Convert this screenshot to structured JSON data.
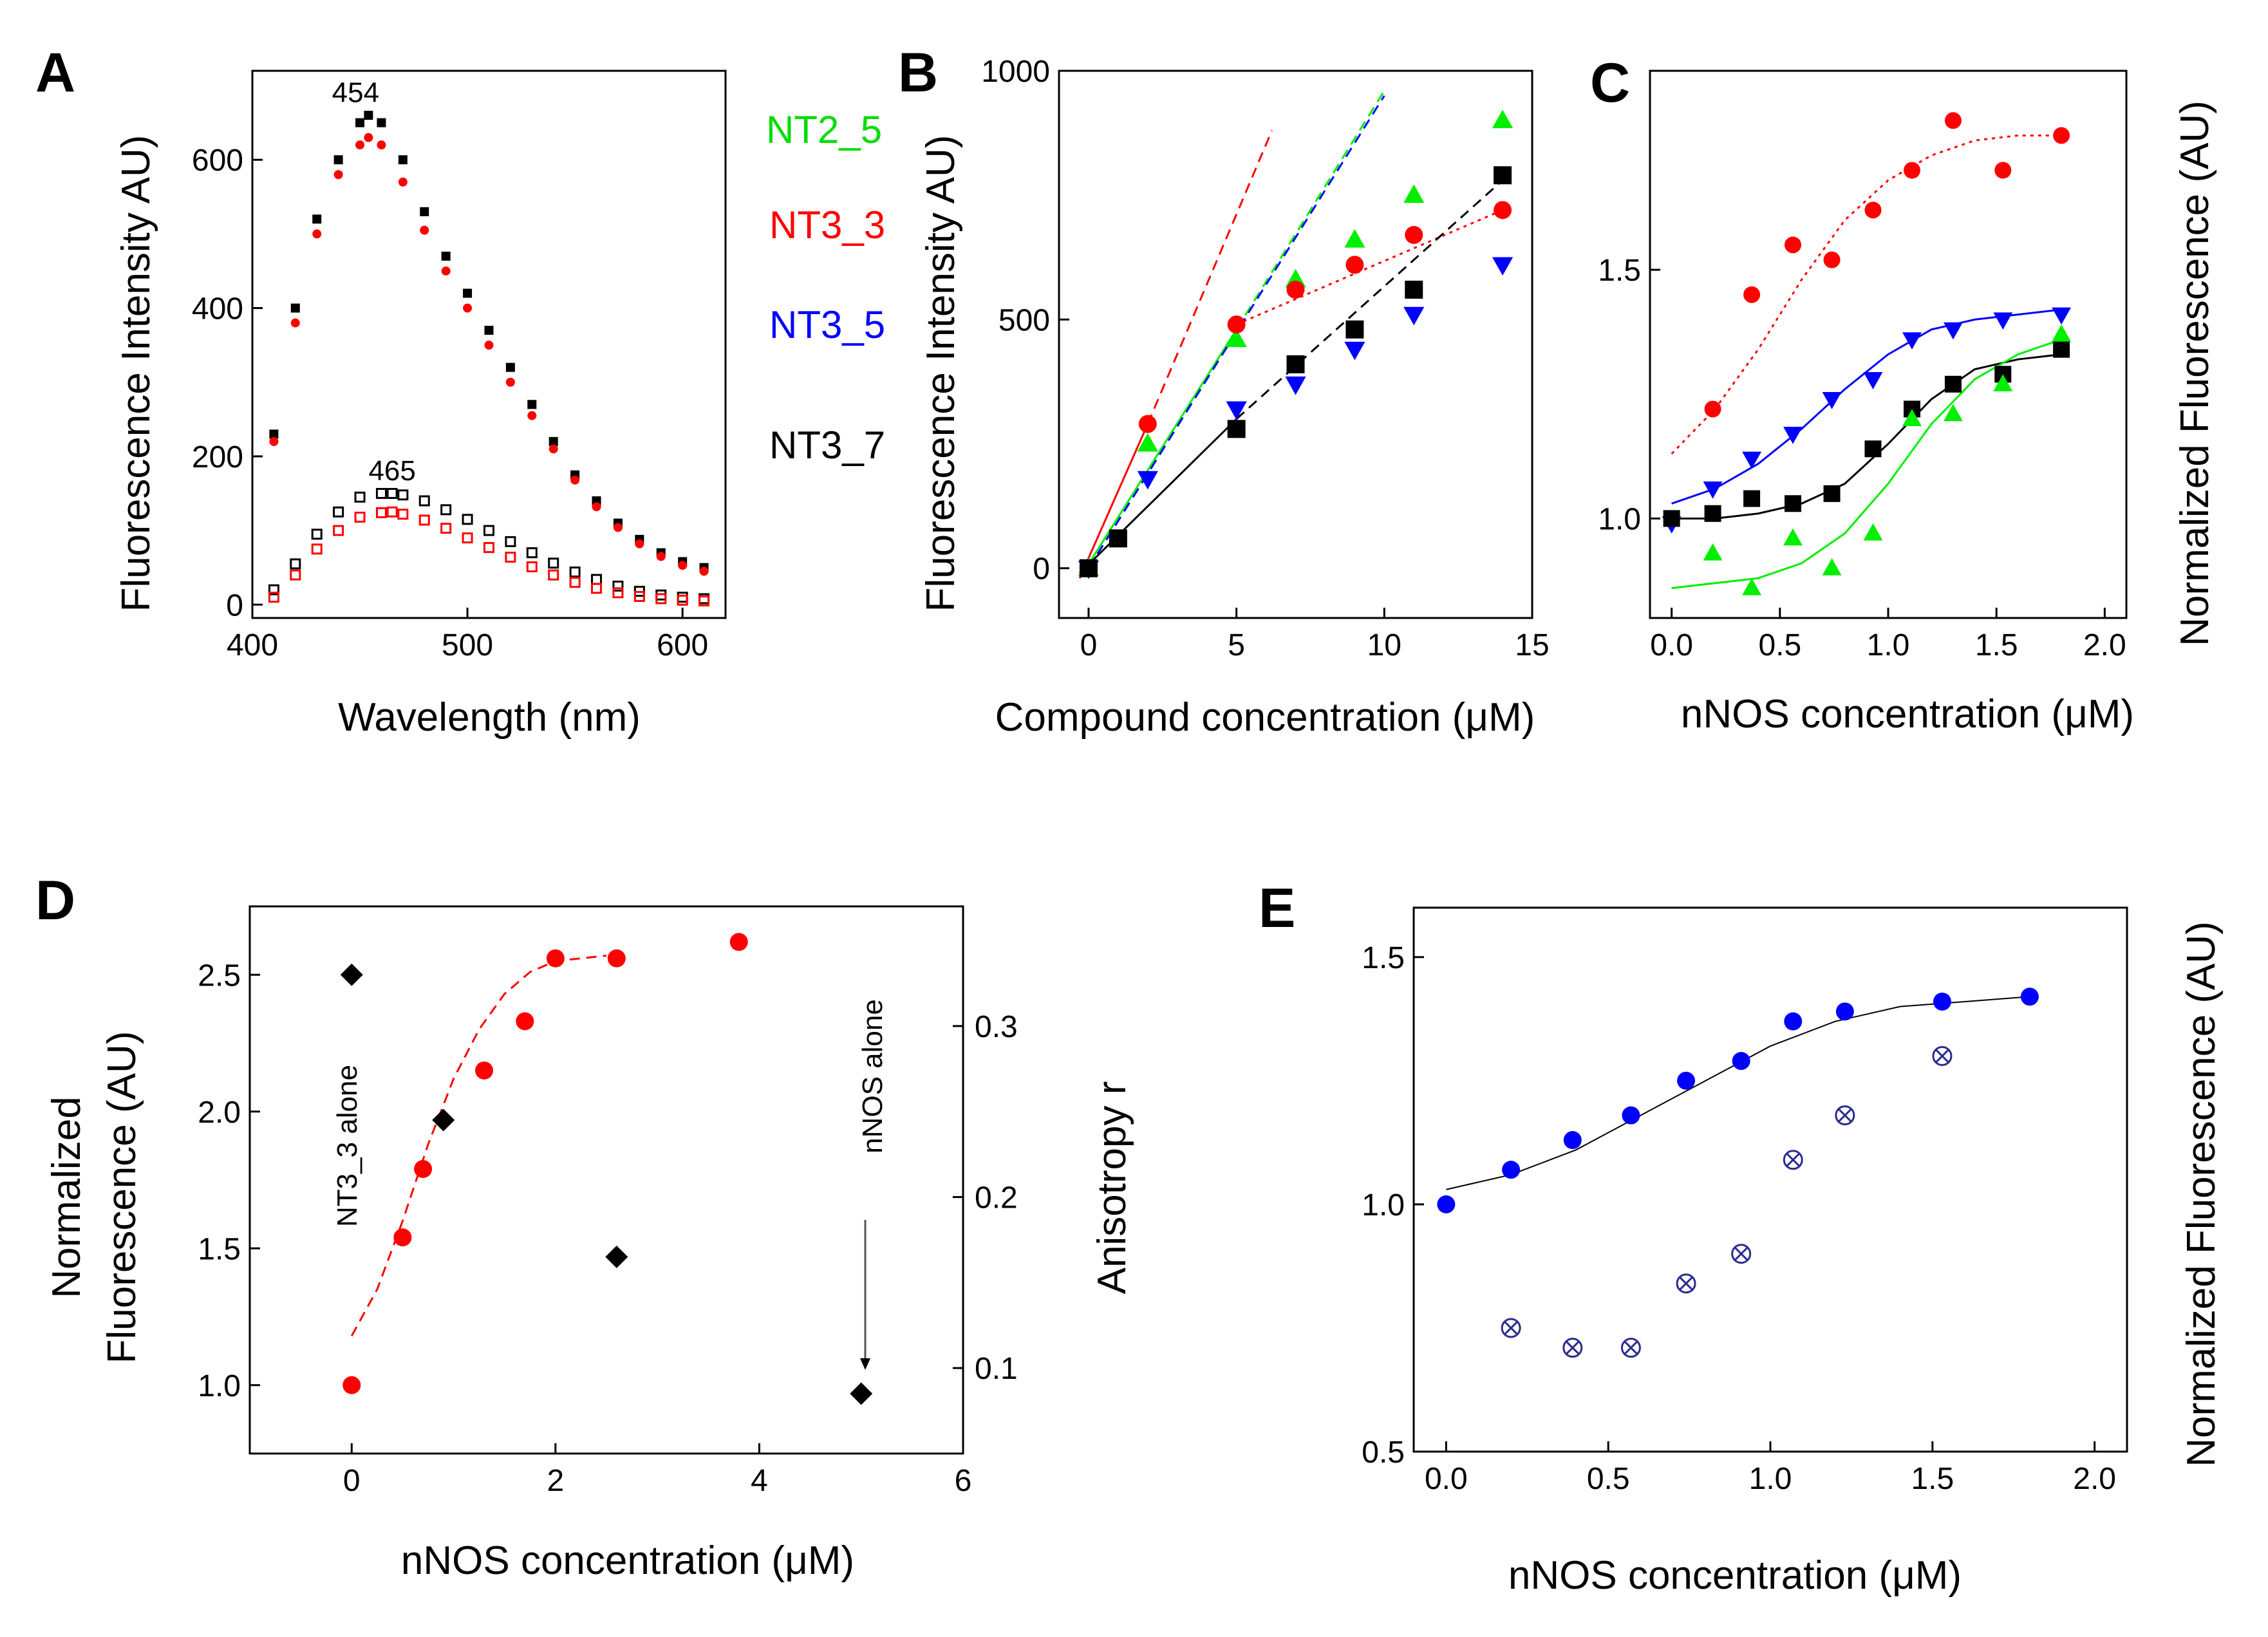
{
  "colors": {
    "black": "#000000",
    "red": "#ff0000",
    "green": "#00ee00",
    "blue": "#0000ff",
    "navy": "#2b2b8f"
  },
  "legend": {
    "entries": [
      {
        "label": "NT2_5",
        "color": "#00dd00"
      },
      {
        "label": "NT3_3",
        "color": "#ff0000"
      },
      {
        "label": "NT3_5",
        "color": "#0000ff"
      },
      {
        "label": "NT3_7",
        "color": "#000000"
      }
    ]
  },
  "chart_data": [
    {
      "id": "A",
      "letter": "A",
      "type": "scatter",
      "xlabel": "Wavelength (nm)",
      "ylabel": "Fluorescence Intensity AU)",
      "xlim": [
        400,
        620
      ],
      "ylim": [
        -18,
        720
      ],
      "xticks": [
        400,
        500,
        600
      ],
      "xtick_labels": [
        "400",
        "500",
        "600"
      ],
      "yticks": [
        0,
        200,
        400,
        600
      ],
      "ytick_labels": [
        "0",
        "200",
        "400",
        "600"
      ],
      "annotations": [
        {
          "text": "454",
          "x": 448,
          "y": 678
        },
        {
          "text": "465",
          "x": 465,
          "y": 168
        }
      ],
      "series": [
        {
          "name": "high black",
          "color": "#000000",
          "marker": "square",
          "x": [
            410,
            420,
            430,
            440,
            450,
            454,
            460,
            470,
            480,
            490,
            500,
            510,
            520,
            530,
            540,
            550,
            560,
            570,
            580,
            590,
            600,
            610
          ],
          "y": [
            230,
            400,
            520,
            600,
            650,
            660,
            650,
            600,
            530,
            470,
            420,
            370,
            320,
            270,
            220,
            175,
            140,
            110,
            88,
            70,
            58,
            50
          ]
        },
        {
          "name": "high red",
          "color": "#ff0000",
          "marker": "circle",
          "x": [
            410,
            420,
            430,
            440,
            450,
            454,
            460,
            470,
            480,
            490,
            500,
            510,
            520,
            530,
            540,
            550,
            560,
            570,
            580,
            590,
            600,
            610
          ],
          "y": [
            220,
            380,
            500,
            580,
            620,
            630,
            620,
            570,
            505,
            450,
            400,
            350,
            300,
            255,
            210,
            168,
            132,
            104,
            82,
            65,
            53,
            45
          ]
        },
        {
          "name": "low black",
          "color": "#000000",
          "marker": "open-square",
          "x": [
            410,
            420,
            430,
            440,
            450,
            460,
            465,
            470,
            480,
            490,
            500,
            510,
            520,
            530,
            540,
            550,
            560,
            570,
            580,
            590,
            600,
            610
          ],
          "y": [
            20,
            55,
            95,
            125,
            145,
            150,
            150,
            148,
            140,
            128,
            115,
            100,
            85,
            70,
            56,
            44,
            34,
            25,
            18,
            13,
            10,
            8
          ]
        },
        {
          "name": "low red",
          "color": "#ff0000",
          "marker": "open-square",
          "x": [
            410,
            420,
            430,
            440,
            450,
            460,
            465,
            470,
            480,
            490,
            500,
            510,
            520,
            530,
            540,
            550,
            560,
            570,
            580,
            590,
            600,
            610
          ],
          "y": [
            10,
            40,
            75,
            100,
            118,
            124,
            125,
            122,
            114,
            103,
            90,
            77,
            64,
            51,
            40,
            30,
            22,
            16,
            11,
            8,
            6,
            5
          ]
        }
      ]
    },
    {
      "id": "B",
      "letter": "B",
      "type": "scatter",
      "xlabel": "Compound concentration (μM)",
      "ylabel": "Fluorescence Intensity AU)",
      "xlim": [
        -1,
        15
      ],
      "ylim": [
        -100,
        1000
      ],
      "xticks": [
        0,
        5,
        10,
        15
      ],
      "xtick_labels": [
        "0",
        "5",
        "10",
        "15"
      ],
      "yticks": [
        0,
        500,
        1000
      ],
      "ytick_labels": [
        "0",
        "500",
        "1000"
      ],
      "series": [
        {
          "name": "NT2_5",
          "color": "#00ee00",
          "marker": "triangle-up",
          "x": [
            0,
            2,
            5,
            7,
            9,
            11,
            14
          ],
          "y": [
            0,
            250,
            460,
            580,
            660,
            750,
            900
          ]
        },
        {
          "name": "NT3_3",
          "color": "#ff0000",
          "marker": "circle",
          "x": [
            0,
            2,
            5,
            7,
            9,
            11,
            14
          ],
          "y": [
            0,
            290,
            490,
            560,
            610,
            670,
            720
          ]
        },
        {
          "name": "NT3_5",
          "color": "#0000ff",
          "marker": "triangle-down",
          "x": [
            0,
            2,
            5,
            7,
            9,
            11,
            14
          ],
          "y": [
            0,
            180,
            320,
            370,
            440,
            510,
            610
          ]
        },
        {
          "name": "NT3_7",
          "color": "#000000",
          "marker": "square",
          "x": [
            0,
            1,
            5,
            7,
            9,
            11,
            14
          ],
          "y": [
            0,
            60,
            280,
            410,
            480,
            560,
            790
          ]
        }
      ],
      "lines": [
        {
          "color": "#00ee00",
          "dash": "solid",
          "x": [
            -0.3,
            5
          ],
          "y": [
            -20,
            480
          ]
        },
        {
          "color": "#00ee00",
          "dash": "dashed",
          "x": [
            5,
            10
          ],
          "y": [
            480,
            960
          ]
        },
        {
          "color": "#ff0000",
          "dash": "solid",
          "x": [
            -0.3,
            2
          ],
          "y": [
            -20,
            290
          ]
        },
        {
          "color": "#ff0000",
          "dash": "dashed",
          "x": [
            2,
            6.2
          ],
          "y": [
            290,
            880
          ]
        },
        {
          "color": "#ff0000",
          "dash": "dotted",
          "x": [
            5,
            14
          ],
          "y": [
            490,
            720
          ]
        },
        {
          "color": "#0000ff",
          "dash": "dashed",
          "x": [
            0,
            10
          ],
          "y": [
            0,
            950
          ]
        },
        {
          "color": "#000000",
          "dash": "solid",
          "x": [
            -0.3,
            5
          ],
          "y": [
            -10,
            300
          ]
        },
        {
          "color": "#000000",
          "dash": "dashed",
          "x": [
            5,
            14
          ],
          "y": [
            300,
            780
          ]
        }
      ]
    },
    {
      "id": "C",
      "letter": "C",
      "type": "scatter",
      "xlabel": "nNOS concentration (μM)",
      "ylabel": "Normalized Fluorescence (AU)",
      "ylabel_side": "right",
      "xlim": [
        -0.1,
        2.1
      ],
      "ylim": [
        0.8,
        1.9
      ],
      "xticks": [
        0.0,
        0.5,
        1.0,
        1.5,
        2.0
      ],
      "xtick_labels": [
        "0.0",
        "0.5",
        "1.0",
        "1.5",
        "2.0"
      ],
      "yticks": [
        1.0,
        1.5
      ],
      "ytick_labels": [
        "1.0",
        "1.5"
      ],
      "series": [
        {
          "name": "NT3_3",
          "color": "#ff0000",
          "marker": "circle",
          "x": [
            0.19,
            0.37,
            0.56,
            0.74,
            0.93,
            1.11,
            1.3,
            1.53,
            1.8
          ],
          "y": [
            1.22,
            1.45,
            1.55,
            1.52,
            1.62,
            1.7,
            1.8,
            1.7,
            1.77
          ]
        },
        {
          "name": "NT3_5",
          "color": "#0000ff",
          "marker": "triangle-down",
          "x": [
            0.0,
            0.19,
            0.37,
            0.56,
            0.74,
            0.93,
            1.11,
            1.3,
            1.53,
            1.8
          ],
          "y": [
            0.99,
            1.06,
            1.12,
            1.17,
            1.24,
            1.28,
            1.36,
            1.38,
            1.4,
            1.41
          ]
        },
        {
          "name": "NT3_7",
          "color": "#000000",
          "marker": "square",
          "x": [
            0.0,
            0.19,
            0.37,
            0.56,
            0.74,
            0.93,
            1.11,
            1.3,
            1.53,
            1.8
          ],
          "y": [
            1.0,
            1.01,
            1.04,
            1.03,
            1.05,
            1.14,
            1.22,
            1.27,
            1.29,
            1.34
          ]
        },
        {
          "name": "NT2_5",
          "color": "#00ee00",
          "marker": "triangle-up",
          "x": [
            0.19,
            0.37,
            0.56,
            0.74,
            0.93,
            1.11,
            1.3,
            1.53,
            1.8
          ],
          "y": [
            0.93,
            0.86,
            0.96,
            0.9,
            0.97,
            1.2,
            1.21,
            1.27,
            1.37
          ]
        }
      ],
      "curves": [
        {
          "color": "#ff0000",
          "dash": "dotted",
          "x": [
            0.0,
            0.2,
            0.4,
            0.6,
            0.8,
            1.0,
            1.2,
            1.4,
            1.6,
            1.8
          ],
          "y": [
            1.13,
            1.22,
            1.34,
            1.48,
            1.6,
            1.68,
            1.73,
            1.76,
            1.77,
            1.77
          ]
        },
        {
          "color": "#0000ff",
          "dash": "solid",
          "x": [
            0.0,
            0.2,
            0.4,
            0.6,
            0.8,
            1.0,
            1.2,
            1.4,
            1.6,
            1.8
          ],
          "y": [
            1.03,
            1.06,
            1.11,
            1.18,
            1.26,
            1.33,
            1.38,
            1.4,
            1.41,
            1.42
          ]
        },
        {
          "color": "#000000",
          "dash": "solid",
          "x": [
            0.0,
            0.2,
            0.4,
            0.6,
            0.8,
            1.0,
            1.2,
            1.4,
            1.6,
            1.8
          ],
          "y": [
            1.0,
            1.0,
            1.01,
            1.03,
            1.07,
            1.15,
            1.24,
            1.3,
            1.32,
            1.33
          ]
        },
        {
          "color": "#00ee00",
          "dash": "solid",
          "x": [
            0.0,
            0.2,
            0.4,
            0.6,
            0.8,
            1.0,
            1.2,
            1.4,
            1.6,
            1.8
          ],
          "y": [
            0.86,
            0.87,
            0.88,
            0.91,
            0.97,
            1.07,
            1.19,
            1.28,
            1.33,
            1.36
          ]
        }
      ]
    },
    {
      "id": "D",
      "letter": "D",
      "type": "scatter",
      "xlabel": "nNOS concentration (μM)",
      "ylabel_line1": "Normalized",
      "ylabel_line2": "Fluorescence (AU)",
      "y2label": "Anisotropy r",
      "xlim": [
        -1,
        6
      ],
      "ylim": [
        0.75,
        2.75
      ],
      "y2lim": [
        0.05,
        0.37
      ],
      "xticks": [
        0,
        2,
        4,
        6
      ],
      "xtick_labels": [
        "0",
        "2",
        "4",
        "6"
      ],
      "yticks": [
        1.0,
        1.5,
        2.0,
        2.5
      ],
      "ytick_labels": [
        "1.0",
        "1.5",
        "2.0",
        "2.5"
      ],
      "y2ticks": [
        0.1,
        0.2,
        0.3
      ],
      "y2tick_labels": [
        "0.1",
        "0.2",
        "0.3"
      ],
      "annotations": [
        {
          "text": "NT3_3 alone",
          "x": 0,
          "y": 2.1
        },
        {
          "text": "nNOS alone",
          "x": 5,
          "y": 2.02
        }
      ],
      "series": [
        {
          "name": "fluorescence",
          "color": "#ff0000",
          "marker": "circle",
          "axis": "left",
          "x": [
            0,
            0.5,
            0.7,
            1.3,
            1.7,
            2.0,
            2.6,
            3.8
          ],
          "y": [
            1.0,
            1.54,
            1.79,
            2.15,
            2.33,
            2.56,
            2.56,
            2.62
          ]
        },
        {
          "name": "anisotropy",
          "color": "#000000",
          "marker": "diamond",
          "axis": "right",
          "x": [
            0,
            0.9,
            2.6,
            5.0
          ],
          "y": [
            0.33,
            0.245,
            0.165,
            0.085
          ]
        }
      ],
      "curves": [
        {
          "color": "#ff0000",
          "dash": "dashed",
          "x": [
            0.0,
            0.25,
            0.5,
            0.75,
            1.0,
            1.25,
            1.5,
            1.75,
            2.0,
            2.25,
            2.5
          ],
          "y": [
            1.18,
            1.35,
            1.6,
            1.88,
            2.12,
            2.3,
            2.43,
            2.51,
            2.55,
            2.56,
            2.57
          ]
        }
      ]
    },
    {
      "id": "E",
      "letter": "E",
      "type": "scatter",
      "xlabel": "nNOS concentration (μM)",
      "ylabel": "Normalized Fluorescence (AU)",
      "ylabel_side": "right",
      "xlim": [
        -0.1,
        2.1
      ],
      "ylim": [
        0.5,
        1.6
      ],
      "xticks": [
        0.0,
        0.5,
        1.0,
        1.5,
        2.0
      ],
      "xtick_labels": [
        "0.0",
        "0.5",
        "1.0",
        "1.5",
        "2.0"
      ],
      "yticks": [
        0.5,
        1.0,
        1.5
      ],
      "ytick_labels": [
        "0.5",
        "1.0",
        "1.5"
      ],
      "series": [
        {
          "name": "filled",
          "color": "#0000ff",
          "marker": "circle",
          "x": [
            0.0,
            0.2,
            0.39,
            0.57,
            0.74,
            0.91,
            1.07,
            1.23,
            1.53,
            1.8
          ],
          "y": [
            1.0,
            1.07,
            1.13,
            1.18,
            1.25,
            1.29,
            1.37,
            1.39,
            1.41,
            1.42
          ]
        },
        {
          "name": "crossed",
          "color": "#2b2b8f",
          "marker": "crossed-circle",
          "x": [
            0.2,
            0.39,
            0.57,
            0.74,
            0.91,
            1.07,
            1.23,
            1.53
          ],
          "y": [
            0.75,
            0.71,
            0.71,
            0.84,
            0.9,
            1.09,
            1.18,
            1.3
          ]
        }
      ],
      "curves": [
        {
          "color": "#000000",
          "dash": "solid",
          "x": [
            0.0,
            0.2,
            0.4,
            0.6,
            0.8,
            1.0,
            1.2,
            1.4,
            1.6,
            1.8
          ],
          "y": [
            1.03,
            1.06,
            1.11,
            1.18,
            1.25,
            1.32,
            1.37,
            1.4,
            1.41,
            1.42
          ]
        }
      ]
    }
  ]
}
